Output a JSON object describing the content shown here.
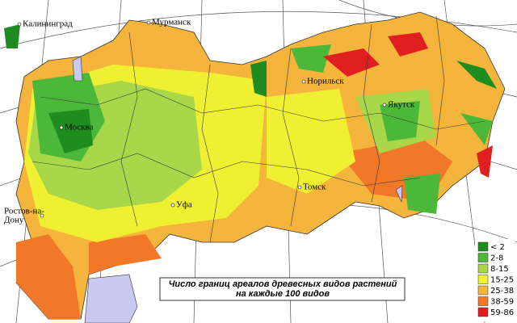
{
  "map": {
    "cities": [
      {
        "lines": [
          "Калининград"
        ]
      },
      {
        "lines": [
          "Мурманск"
        ]
      },
      {
        "lines": [
          "Норильск"
        ]
      },
      {
        "lines": [
          "Якутск"
        ]
      },
      {
        "lines": [
          "Москва"
        ]
      },
      {
        "lines": [
          "Томск"
        ]
      },
      {
        "lines": [
          "Уфа"
        ]
      },
      {
        "lines": [
          "Ростов-на-",
          "Дону"
        ]
      }
    ],
    "legend": [
      {
        "label": "< 2",
        "color": "#1e8c1e"
      },
      {
        "label": "2-8",
        "color": "#4cb83a"
      },
      {
        "label": "8-15",
        "color": "#a8d84a"
      },
      {
        "label": "15-25",
        "color": "#f0f032"
      },
      {
        "label": "25-38",
        "color": "#f5b43c"
      },
      {
        "label": "38-59",
        "color": "#f07828"
      },
      {
        "label": "59-86",
        "color": "#e02020"
      }
    ],
    "caption": [
      "Число границ ареалов древесных видов растений",
      "на каждые  100  видов"
    ]
  }
}
